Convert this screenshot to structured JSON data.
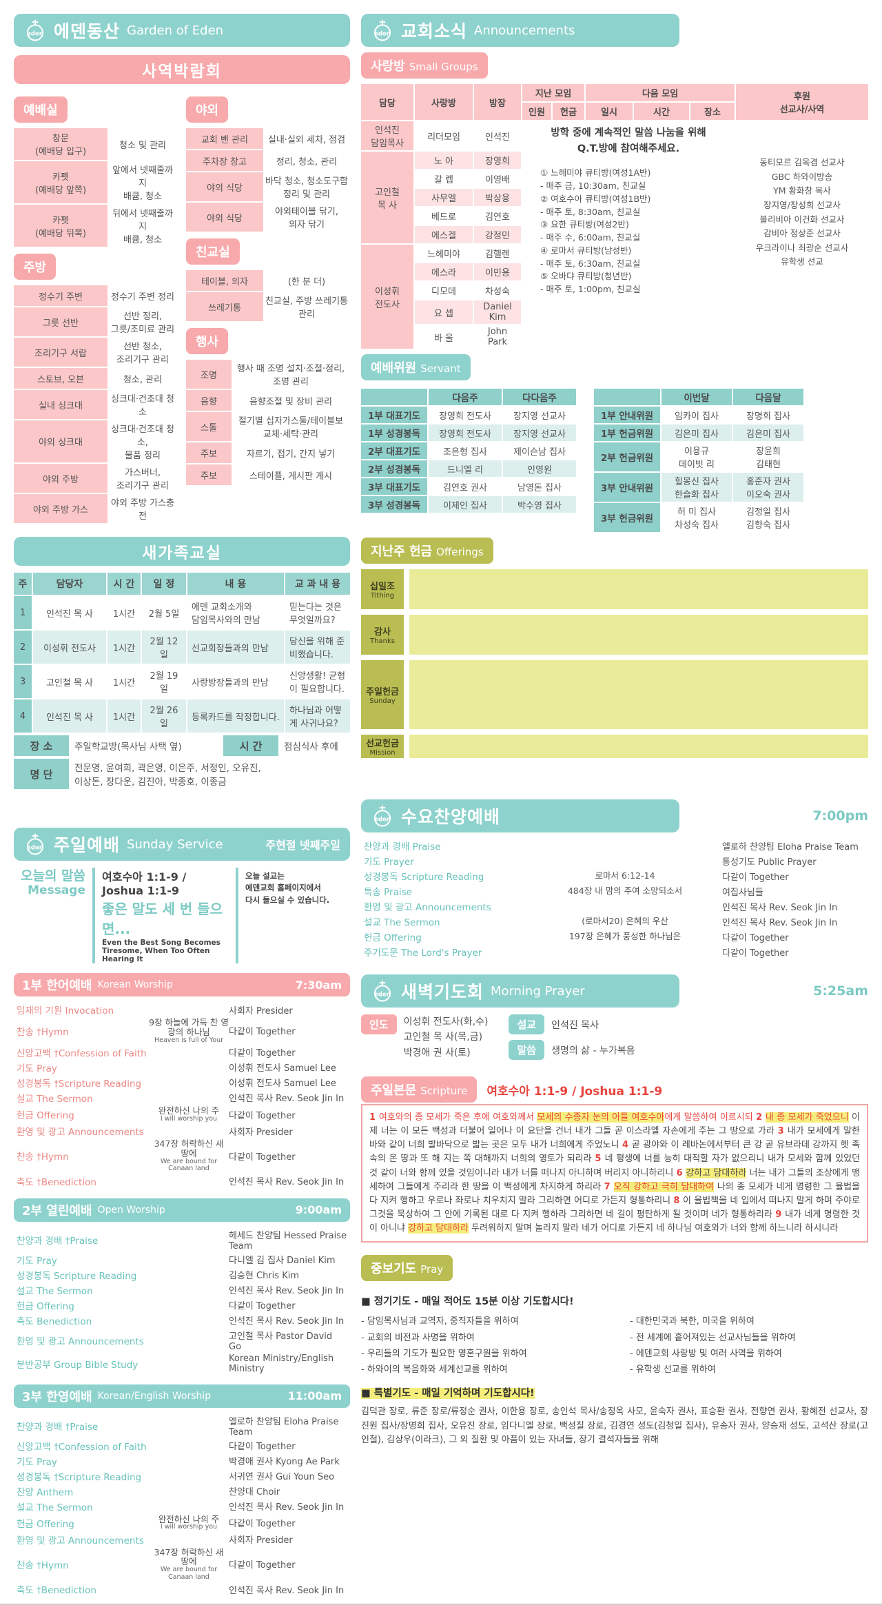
{
  "theme": {
    "teal": "#8ed2cd",
    "pink": "#f8a9ac",
    "pink_light": "#fbc7c9",
    "teal_row": "#dcefed",
    "olive": "#b9bd52",
    "yellow": "#e9eb98",
    "red": "#e8443e",
    "highlight": "#f6ee7c"
  },
  "left": {
    "garden": {
      "title": "에덴동산",
      "subtitle": "Garden of Eden"
    },
    "ministry_fair": {
      "title": "사역박람회",
      "groups_left": [
        {
          "tag": "예배실",
          "rows": [
            {
              "label": "창문\n(예배당 입구)",
              "desc": "청소 및 관리"
            },
            {
              "label": "카펫\n(예배당 앞쪽)",
              "desc": "앞에서 넷째줄까지\n배큠, 청소"
            },
            {
              "label": "카펫\n(예배당 뒤쪽)",
              "desc": "뒤에서 넷째줄까지\n배큠, 청소"
            }
          ]
        },
        {
          "tag": "주방",
          "rows": [
            {
              "label": "정수기 주변",
              "desc": "정수기 주변 정리"
            },
            {
              "label": "그릇 선반",
              "desc": "선반 정리,\n그릇/조미료 관리"
            },
            {
              "label": "조리기구 서랍",
              "desc": "선반 청소,\n조리기구 관리"
            },
            {
              "label": "스토브, 오븐",
              "desc": "청소, 관리"
            },
            {
              "label": "실내 싱크대",
              "desc": "싱크대·건조대 청소"
            },
            {
              "label": "야외 싱크대",
              "desc": "싱크대·건조대 청소,\n물품 정리"
            },
            {
              "label": "야외 주방",
              "desc": "가스버너,\n조리기구 관리"
            },
            {
              "label": "야외 주방 가스",
              "desc": "야외 주방 가스충전"
            }
          ]
        }
      ],
      "groups_right": [
        {
          "tag": "야외",
          "rows": [
            {
              "label": "교회 밴 관리",
              "desc": "실내·실외 세차, 점검"
            },
            {
              "label": "주차장 창고",
              "desc": "정리, 청소, 관리"
            },
            {
              "label": "야외 식당",
              "desc": "바닥 청소, 청소도구함\n정리 및 관리"
            },
            {
              "label": "야외 식당",
              "desc": "야외테이블 닦기,\n의자 닦기"
            }
          ]
        },
        {
          "tag": "친교실",
          "rows": [
            {
              "label": "테이블, 의자",
              "desc": "(한 분 더)"
            },
            {
              "label": "쓰레기통",
              "desc": "친교실, 주방 쓰레기통 관리"
            }
          ]
        },
        {
          "tag": "행사",
          "rows": [
            {
              "label": "조명",
              "desc": "행사 때 조명 설치·조절·정리,\n조명 관리"
            },
            {
              "label": "음향",
              "desc": "음향조절 및 장비 관리"
            },
            {
              "label": "스톨",
              "desc": "절기별 십자가스툴/테이블보\n교체·세탁·관리"
            },
            {
              "label": "주보",
              "desc": "자르기, 접기, 간지 넣기"
            },
            {
              "label": "주보",
              "desc": "스테이플, 게시판 게시"
            }
          ]
        }
      ]
    },
    "new_family": {
      "title": "새가족교실",
      "headers": [
        "주",
        "담당자",
        "시 간",
        "일 정",
        "내  용",
        "교 과 내 용"
      ],
      "rows": [
        [
          "1",
          "인석진 목  사",
          "1시간",
          "2월 5일",
          "에덴 교회소개와\n담임목사와의 만남",
          "믿는다는 것은 무엇일까요?"
        ],
        [
          "2",
          "이성휘 전도사",
          "1시간",
          "2월 12일",
          "선교회장들과의 만남",
          "당신을 위해 준비했습니다."
        ],
        [
          "3",
          "고인철 목  사",
          "1시간",
          "2월 19일",
          "사랑방장들과의 만남",
          "신앙생활! 균형이 필요합니다."
        ],
        [
          "4",
          "인석진 목  사",
          "1시간",
          "2월 26일",
          "등록카드를 작정합니다.",
          "하나님과 어떻게 사귀나요?"
        ]
      ],
      "place_label": "장 소",
      "place": "주일학교방(목사님 사택 옆)",
      "time_label": "시 간",
      "time": "점심식사 후에",
      "roster_label": "명 단",
      "roster": "전문영, 윤여희, 곽은영, 이은주, 서정인, 오유진,\n이상돈, 장다운, 김진아, 박종호, 이종금"
    },
    "sunday_service": {
      "title": "주일예배",
      "subtitle": "Sunday Service",
      "note": "주현절 넷째주일",
      "message_label_ko": "오늘의 말씀",
      "message_label_en": "Message",
      "scripture_ref": "여호수아 1:1-9 / Joshua 1:1-9",
      "sermon_title": "좋은 말도 세 번 들으면...",
      "sermon_title_en": "Even the Best Song Becomes Tiresome, When Too Often Hearing It",
      "notice": "오늘 설교는\n에덴교회 홈페이지에서\n다시 들으실 수 있습니다.",
      "services": [
        {
          "style": "pink",
          "title": "1부 한어예배",
          "subtitle": "Korean Worship",
          "time": "7:30am",
          "rows": [
            {
              "item": "임재의 기원 Invocation",
              "who": "사회자 Presider"
            },
            {
              "item": "찬송 †Hymn",
              "center": "9장 하늘에 가득 찬 영광의 하나님",
              "center_sub": "Heaven is full of Your",
              "who": "다같이 Together"
            },
            {
              "item": "신앙고백 †Confession of Faith",
              "who": "다같이 Together"
            },
            {
              "item": "기도 Pray",
              "who": "이성휘 전도사 Samuel Lee"
            },
            {
              "item": "성경봉독 †Scripture Reading",
              "who": "이성휘 전도사 Samuel Lee"
            },
            {
              "item": "설교 The Sermon",
              "who": "인석진 목사 Rev. Seok Jin In"
            },
            {
              "item": "헌금 Offering",
              "center": "완전하신 나의 주",
              "center_sub": "I will worship you",
              "who": "다같이 Together"
            },
            {
              "item": "환영 및 광고 Announcements",
              "who": "사회자 Presider"
            },
            {
              "item": "찬송 †Hymn",
              "center": "347장 허락하신 새 땅에",
              "center_sub": "We are bound for Canaan land",
              "who": "다같이 Together"
            },
            {
              "item": "축도 †Benediction",
              "who": "인석진 목사 Rev. Seok Jin In"
            }
          ]
        },
        {
          "style": "teal",
          "title": "2부 열린예배",
          "subtitle": "Open Worship",
          "time": "9:00am",
          "rows": [
            {
              "item": "찬양과 경배 †Praise",
              "who": "헤세드 찬양팀 Hessed Praise Team"
            },
            {
              "item": "기도 Pray",
              "who": "다니엘 김 집사 Daniel Kim"
            },
            {
              "item": "성경봉독 Scripture Reading",
              "who": "김승현 Chris Kim"
            },
            {
              "item": "설교 The Sermon",
              "who": "인석진 목사 Rev. Seok Jin In"
            },
            {
              "item": "헌금 Offering",
              "who": "다같이 Together"
            },
            {
              "item": "축도 Benediction",
              "who": "인석진 목사 Rev. Seok Jin In"
            },
            {
              "item": "환영 및 광고 Announcements",
              "who": "고인철 목사 Pastor David Go"
            },
            {
              "item": "분반공부 Group Bible Study",
              "who": "Korean Ministry/English Ministry"
            }
          ]
        },
        {
          "style": "teal",
          "title": "3부 한영예배",
          "subtitle": "Korean/English Worship",
          "time": "11:00am",
          "rows": [
            {
              "item": "찬양과 경배 †Praise",
              "who": "엘로하 찬양팀 Eloha Praise Team"
            },
            {
              "item": "신앙고백 †Confession of Faith",
              "who": "다같이 Together"
            },
            {
              "item": "기도 Pray",
              "who": "박경애 권사 Kyong Ae Park"
            },
            {
              "item": "성경봉독 †Scripture Reading",
              "who": "서귀연 권사 Gui Youn Seo"
            },
            {
              "item": "찬양 Anthem",
              "who": "찬양대 Choir"
            },
            {
              "item": "설교 The Sermon",
              "who": "인석진 목사 Rev. Seok Jin In"
            },
            {
              "item": "헌금 Offering",
              "center": "완전하신 나의 주",
              "center_sub": "I will worship you",
              "who": "다같이 Together"
            },
            {
              "item": "환영 및 광고 Announcements",
              "who": "사회자 Presider"
            },
            {
              "item": "찬송 †Hymn",
              "center": "347장 허락하신 새 땅에",
              "center_sub": "We are bound for Canaan land",
              "who": "다같이 Together"
            },
            {
              "item": "축도 †Benediction",
              "who": "인석진 목사 Rev. Seok Jin In"
            }
          ]
        }
      ]
    }
  },
  "right": {
    "announcements": {
      "title": "교회소식",
      "subtitle": "Announcements"
    },
    "small_groups": {
      "tag": "사랑방",
      "tag_en": "Small Groups",
      "headers": {
        "damdang": "담당",
        "sarangbang": "사랑방",
        "bangjang": "방장",
        "last": "지난 모임",
        "last_sub": [
          "인원",
          "헌금"
        ],
        "next": "다음 모임",
        "next_sub": [
          "일시",
          "시간",
          "장소"
        ],
        "support": "후원\n선교사/사역"
      },
      "leaders": [
        {
          "name": "인석진\n담임목사",
          "groups": [
            {
              "g": "리더모임",
              "h": "인석진"
            }
          ]
        },
        {
          "name": "고인철\n목  사",
          "groups": [
            {
              "g": "노  아",
              "h": "장영희"
            },
            {
              "g": "갈  렙",
              "h": "이영배"
            },
            {
              "g": "사무엘",
              "h": "박상용"
            },
            {
              "g": "베드로",
              "h": "김연호"
            },
            {
              "g": "에스겔",
              "h": "강정민"
            }
          ]
        },
        {
          "name": "이성휘\n전도사",
          "groups": [
            {
              "g": "느헤미야",
              "h": "김헬렌"
            },
            {
              "g": "에스라",
              "h": "이민용"
            },
            {
              "g": "디모데",
              "h": "차성숙"
            },
            {
              "g": "요  셉",
              "h": "Daniel\nKim"
            },
            {
              "g": "바  울",
              "h": "John\nPark"
            }
          ]
        }
      ],
      "notice": "방학 중에 계속적인 말씀 나눔을 위해\nQ.T.방에 참여해주세요.",
      "qt_rooms": [
        "① 느헤미야 큐티방(여성1A반)",
        "- 매주 금, 10:30am, 친교실",
        "② 여호수아 큐티방(여성1B반)",
        "- 매주 토, 8:30am, 친교실",
        "③ 요한 큐티방(여성2반)",
        "- 매주 수, 6:00am, 친교실",
        "④ 로마서 큐티방(남성반)",
        "- 매주 토, 6:30am, 친교실",
        "⑤ 오바댜 큐티방(청년반)",
        "- 매주 토, 1:00pm, 친교실"
      ],
      "missionaries": [
        "동티모르 김옥겸 선교사",
        "GBC 하와이방송",
        "YM 황화창 목사",
        "장지영/장성희 선교사",
        "볼리비아 이건화 선교사",
        "감비아 정상준 선교사",
        "우크라이나 최광순 선교사",
        "유학생 선교"
      ]
    },
    "servant": {
      "tag": "예배위원",
      "tag_en": "Servant",
      "week_table": {
        "headers": [
          "",
          "다음주",
          "다다음주"
        ],
        "rows": [
          [
            "1부 대표기도",
            "장영희 전도사",
            "장지영 선교사"
          ],
          [
            "1부 성경봉독",
            "장영희 전도사",
            "장지영 선교사"
          ],
          [
            "2부 대표기도",
            "조은형 집사",
            "제이슨남 집사"
          ],
          [
            "2부 성경봉독",
            "드니엘 리",
            "인영원"
          ],
          [
            "3부 대표기도",
            "김연호 권사",
            "남영돈 집사"
          ],
          [
            "3부 성경봉독",
            "이제인 집사",
            "박수영 집사"
          ]
        ]
      },
      "month_table": {
        "headers": [
          "",
          "이번달",
          "다음달"
        ],
        "rows": [
          [
            "1부 안내위원",
            "임카이 집사",
            "장명희 집사"
          ],
          [
            "1부 헌금위원",
            "김은미 집사",
            "김은미 집사"
          ],
          [
            "2부 헌금위원",
            "이용규\n데이빗 리",
            "장윤희\n김태현"
          ],
          [
            "3부 안내위원",
            "힐몽신 집사\n한슬화 집사",
            "홍준자 권사\n이오숙 권사"
          ],
          [
            "3부 헌금위원",
            "허 미 집사\n차성숙 집사",
            "김정일 집사\n김향숙 집사"
          ]
        ]
      }
    },
    "offerings": {
      "tag": "지난주 헌금",
      "tag_en": "Offerings",
      "items": [
        {
          "label": "십일조",
          "label_en": "Tithing"
        },
        {
          "label": "감사",
          "label_en": "Thanks"
        },
        {
          "label": "주일헌금",
          "label_en": "Sunday"
        },
        {
          "label": "선교헌금",
          "label_en": "Mission"
        }
      ]
    },
    "wednesday": {
      "title": "수요찬양예배",
      "time": "7:00pm",
      "rows": [
        {
          "item": "찬양과 경배 Praise",
          "who": "엘로하 찬양팀 Eloha Praise Team"
        },
        {
          "item": "기도 Prayer",
          "who": "통성기도 Public Prayer"
        },
        {
          "item": "성경봉독 Scripture Reading",
          "center": "로마서 6:12-14",
          "who": "다같이 Together"
        },
        {
          "item": "특송 Praise",
          "center": "484장 내 맘의 주여 소망되소서",
          "who": "여집사님들"
        },
        {
          "item": "환영 및 광고 Announcements",
          "who": "인석진 목사 Rev. Seok Jin In"
        },
        {
          "item": "설교 The Sermon",
          "center": "(로마서20) 은혜의 우산",
          "who": "인석진 목사 Rev. Seok Jin In"
        },
        {
          "item": "헌금 Offering",
          "center": "197장 은혜가 풍성한 하나님은",
          "who": "다같이 Together"
        },
        {
          "item": "주기도문 The Lord's Prayer",
          "who": "다같이 Together"
        }
      ]
    },
    "morning_prayer": {
      "title": "새벽기도회",
      "subtitle": "Morning Prayer",
      "time": "5:25am",
      "lead_label": "인도",
      "leads": [
        "이성휘 전도사(화,수)",
        "고인철 목  사(목,금)",
        "박경애 권  사(토)"
      ],
      "sermon_label": "설교",
      "sermon": "인석진 목사",
      "word_label": "말씀",
      "word": "생명의 삶 - 누가복음"
    },
    "scripture_section": {
      "tag": "주일본문",
      "tag_en": "Scripture",
      "ref": "여호수아 1:1-9 / Joshua 1:1-9",
      "segments": [
        {
          "t": "1 ",
          "c": "red"
        },
        {
          "t": "여호와의 종 모세가 죽은 후에 여호와께서 ",
          "c": "red"
        },
        {
          "t": "모세의 수종자 눈의 아들 여호수아",
          "c": "red",
          "h": true
        },
        {
          "t": "에게 말씀하여 이르시되 ",
          "c": "red"
        },
        {
          "t": "2 ",
          "c": "red"
        },
        {
          "t": "내 종 모세가 죽었으니",
          "c": "red",
          "h": true
        },
        {
          "t": " 이제 너는 이 모든 백성과 더불어 일어나 이 요단을 건너 내가 그들 곧 이스라엘 자손에게 주는 그 땅으로 가라 ",
          "c": "dark"
        },
        {
          "t": "3 ",
          "c": "red"
        },
        {
          "t": "내가 모세에게 말한 바와 같이 너희 발바닥으로 밟는 곳은 모두 내가 너희에게 주었노니 ",
          "c": "dark"
        },
        {
          "t": "4 ",
          "c": "red"
        },
        {
          "t": "곧 광야와 이 레바논에서부터 큰 강 곧 유브라데 강까지 헷 족속의 온 땅과 또 해 지는 쪽 대해까지 너희의 영토가 되리라 ",
          "c": "dark"
        },
        {
          "t": "5 ",
          "c": "red"
        },
        {
          "t": "네 평생에 너를 능히 대적할 자가 없으리니 내가 모세와 함께 있었던 것 같이 너와 함께 있을 것임이니라 내가 너를 떠나지 아니하며 버리지 아니하리니 ",
          "c": "dark"
        },
        {
          "t": "6 ",
          "c": "red"
        },
        {
          "t": "강하고 담대하라",
          "c": "dark",
          "h": true
        },
        {
          "t": " 너는 내가 그들의 조상에게 맹세하여 그들에게 주리라 한 땅을 이 백성에게 차지하게 하리라 ",
          "c": "dark"
        },
        {
          "t": "7 ",
          "c": "red"
        },
        {
          "t": "오직 강하고 극히 담대하여",
          "c": "red",
          "h": true
        },
        {
          "t": " 나의 종 모세가 네게 명령한 그 율법을 다 지켜 행하고 우로나 좌로나 치우치지 말라 그리하면 어디로 가든지 형통하리니 ",
          "c": "dark"
        },
        {
          "t": "8 ",
          "c": "red"
        },
        {
          "t": "이 율법책을 네 입에서 떠나지 말게 하며 주야로 그것을 묵상하여 그 안에 기록된 대로 다 지켜 행하라 그리하면 네 길이 평탄하게 될 것이며 네가 형통하리라 ",
          "c": "dark"
        },
        {
          "t": "9 ",
          "c": "red"
        },
        {
          "t": "내가 네게 명령한 것이 아니냐 ",
          "c": "dark"
        },
        {
          "t": "강하고 담대하라",
          "c": "red",
          "h": true
        },
        {
          "t": " 두려워하지 말며 놀라지 말라 네가 어디로 가든지 네 하나님 여호와가 너와 함께 하느니라 하시니라",
          "c": "dark"
        }
      ]
    },
    "intercession": {
      "tag": "중보기도",
      "tag_en": "Pray",
      "regular_title": "■ 정기기도 - 매일 적어도 15분 이상 기도합시다!",
      "regular_left": [
        "- 담임목사님과 교역자, 중직자들을 위하여",
        "- 교회의 비전과 사명을 위하여",
        "- 우리들의 기도가 필요한 영혼구원을 위하여",
        "- 하와이의 복음화와 세계선교를 위하여"
      ],
      "regular_right": [
        "- 대한민국과 북한, 미국을 위하여",
        "- 전 세계에 흩어져있는 선교사님들을 위하여",
        "- 에덴교회 사랑방 및 여러 사역을 위하여",
        "- 유학생 선교를 위하여"
      ],
      "special_title": "■ 특별기도 - 매일 기억하며 기도합시다!",
      "special_body": "김덕관 장로, 류준 장로/류정순 권사, 이한용 장로, 송인석 목사/송정옥 사모, 윤숙자 권사, 표승환 권사, 전향연 권사, 황혜전 선교사, 장진원 집사/장명희 집사, 오유진 장로, 임다니엘 장로, 백성칠 장로, 김경연 성도(김청일 집사), 유송자 권사, 양승재 성도, 고석산 장로(고인철), 김상우(이라크), 그 외 질환 및 아픔이 있는 자녀들, 장기 결석자들을 위해"
    }
  }
}
